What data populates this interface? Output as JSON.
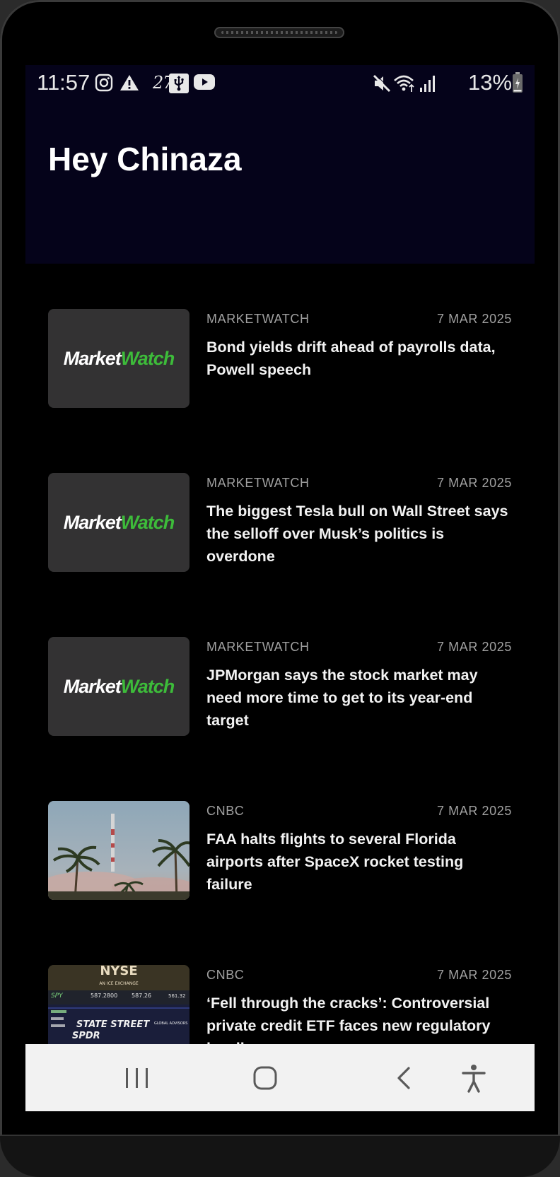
{
  "status_bar": {
    "time": "11:57",
    "temperature": "27°",
    "battery": "13%",
    "left_icons": [
      "instagram-icon",
      "warning-icon",
      "usb-icon",
      "youtube-icon"
    ],
    "right_icons": [
      "mute-icon",
      "wifi-icon",
      "signal-icon",
      "battery-icon"
    ]
  },
  "header": {
    "greeting": "Hey Chinaza",
    "background": "#05031a"
  },
  "logo": {
    "part1": "Market",
    "part2": "Watch",
    "accent": "#3dbb3a"
  },
  "articles": [
    {
      "source": "MARKETWATCH",
      "date": "7 MAR 2025",
      "headline": "Bond yields drift ahead of payrolls data, Powell speech",
      "thumbnail": "marketwatch-logo"
    },
    {
      "source": "MARKETWATCH",
      "date": "7 MAR 2025",
      "headline": "The biggest Tesla bull on Wall Street says the selloff over Musk’s politics is overdone",
      "thumbnail": "marketwatch-logo"
    },
    {
      "source": "MARKETWATCH",
      "date": "7 MAR 2025",
      "headline": "JPMorgan says the stock market may need more time to get to its year-end target",
      "thumbnail": "marketwatch-logo"
    },
    {
      "source": "CNBC",
      "date": "7 MAR 2025",
      "headline": "FAA halts flights to several Florida airports after SpaceX rocket testing failure",
      "thumbnail": "rocket-launch-photo"
    },
    {
      "source": "CNBC",
      "date": "7 MAR 2025",
      "headline": "‘Fell through the cracks’: Controversial private credit ETF faces new regulatory hurdle",
      "thumbnail": "nyse-photo",
      "thumbnail_text": {
        "nyse_top": "NYSE",
        "ice": "AN ICE EXCHANGE",
        "ticker": "SPY",
        "price1": "587.2800",
        "price2": "587.26",
        "price3": "561.32",
        "sign1": "STATE STREET",
        "sign2": "SPDR",
        "sign3": "GLOBAL ADVISORS"
      }
    }
  ],
  "nav_bar": {
    "buttons": [
      "recents-icon",
      "home-icon",
      "back-icon",
      "accessibility-icon"
    ]
  }
}
